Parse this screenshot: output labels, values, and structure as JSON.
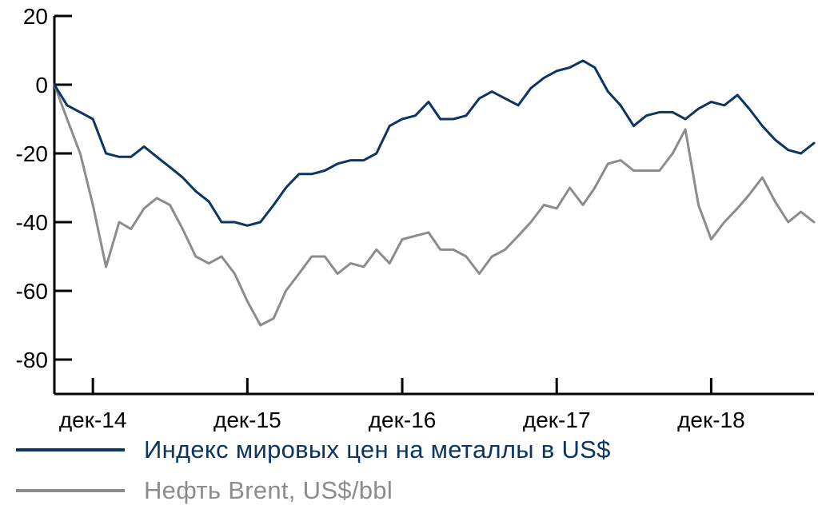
{
  "chart_data": {
    "type": "line",
    "title": "",
    "xlabel": "",
    "ylabel": "",
    "ylim": [
      -90,
      20
    ],
    "yticks": [
      20,
      0,
      -20,
      -40,
      -60,
      -80
    ],
    "xlim": [
      "2014-09-01",
      "2019-08-01"
    ],
    "xticks": [
      {
        "date": "2014-12-01",
        "label": "дек-14"
      },
      {
        "date": "2015-12-01",
        "label": "дек-15"
      },
      {
        "date": "2016-12-01",
        "label": "дек-16"
      },
      {
        "date": "2017-12-01",
        "label": "дек-17"
      },
      {
        "date": "2018-12-01",
        "label": "дек-18"
      }
    ],
    "grid": false,
    "legend_position": "bottom",
    "series": [
      {
        "name": "Индекс мировых цен на металлы в US$",
        "color": "#0b3563",
        "points": [
          [
            "2014-09-01",
            0
          ],
          [
            "2014-10-01",
            -6
          ],
          [
            "2014-11-01",
            -8
          ],
          [
            "2014-12-01",
            -10
          ],
          [
            "2015-01-01",
            -20
          ],
          [
            "2015-02-01",
            -21
          ],
          [
            "2015-03-01",
            -21
          ],
          [
            "2015-04-01",
            -18
          ],
          [
            "2015-05-01",
            -21
          ],
          [
            "2015-06-01",
            -24
          ],
          [
            "2015-07-01",
            -27
          ],
          [
            "2015-08-01",
            -31
          ],
          [
            "2015-09-01",
            -34
          ],
          [
            "2015-10-01",
            -40
          ],
          [
            "2015-11-01",
            -40
          ],
          [
            "2015-12-01",
            -41
          ],
          [
            "2016-01-01",
            -40
          ],
          [
            "2016-02-01",
            -35
          ],
          [
            "2016-03-01",
            -30
          ],
          [
            "2016-04-01",
            -26
          ],
          [
            "2016-05-01",
            -26
          ],
          [
            "2016-06-01",
            -25
          ],
          [
            "2016-07-01",
            -23
          ],
          [
            "2016-08-01",
            -22
          ],
          [
            "2016-09-01",
            -22
          ],
          [
            "2016-10-01",
            -20
          ],
          [
            "2016-11-01",
            -12
          ],
          [
            "2016-12-01",
            -10
          ],
          [
            "2017-01-01",
            -9
          ],
          [
            "2017-02-01",
            -5
          ],
          [
            "2017-03-01",
            -10
          ],
          [
            "2017-04-01",
            -10
          ],
          [
            "2017-05-01",
            -9
          ],
          [
            "2017-06-01",
            -4
          ],
          [
            "2017-07-01",
            -2
          ],
          [
            "2017-08-01",
            -4
          ],
          [
            "2017-09-01",
            -6
          ],
          [
            "2017-10-01",
            -1
          ],
          [
            "2017-11-01",
            2
          ],
          [
            "2017-12-01",
            4
          ],
          [
            "2018-01-01",
            5
          ],
          [
            "2018-02-01",
            7
          ],
          [
            "2018-03-01",
            5
          ],
          [
            "2018-04-01",
            -2
          ],
          [
            "2018-05-01",
            -6
          ],
          [
            "2018-06-01",
            -12
          ],
          [
            "2018-07-01",
            -9
          ],
          [
            "2018-08-01",
            -8
          ],
          [
            "2018-09-01",
            -8
          ],
          [
            "2018-10-01",
            -10
          ],
          [
            "2018-11-01",
            -7
          ],
          [
            "2018-12-01",
            -5
          ],
          [
            "2019-01-01",
            -6
          ],
          [
            "2019-02-01",
            -3
          ],
          [
            "2019-03-01",
            -7
          ],
          [
            "2019-04-01",
            -12
          ],
          [
            "2019-05-01",
            -16
          ],
          [
            "2019-06-01",
            -19
          ],
          [
            "2019-07-01",
            -20
          ],
          [
            "2019-08-01",
            -17
          ]
        ]
      },
      {
        "name": "Нефть Brent, US$/bbl",
        "color": "#8c8c8c",
        "points": [
          [
            "2014-09-01",
            0
          ],
          [
            "2014-10-01",
            -10
          ],
          [
            "2014-11-01",
            -20
          ],
          [
            "2014-12-01",
            -35
          ],
          [
            "2015-01-01",
            -53
          ],
          [
            "2015-02-01",
            -40
          ],
          [
            "2015-03-01",
            -42
          ],
          [
            "2015-04-01",
            -36
          ],
          [
            "2015-05-01",
            -33
          ],
          [
            "2015-06-01",
            -35
          ],
          [
            "2015-07-01",
            -42
          ],
          [
            "2015-08-01",
            -50
          ],
          [
            "2015-09-01",
            -52
          ],
          [
            "2015-10-01",
            -50
          ],
          [
            "2015-11-01",
            -55
          ],
          [
            "2015-12-01",
            -63
          ],
          [
            "2016-01-01",
            -70
          ],
          [
            "2016-02-01",
            -68
          ],
          [
            "2016-03-01",
            -60
          ],
          [
            "2016-04-01",
            -55
          ],
          [
            "2016-05-01",
            -50
          ],
          [
            "2016-06-01",
            -50
          ],
          [
            "2016-07-01",
            -55
          ],
          [
            "2016-08-01",
            -52
          ],
          [
            "2016-09-01",
            -53
          ],
          [
            "2016-10-01",
            -48
          ],
          [
            "2016-11-01",
            -52
          ],
          [
            "2016-12-01",
            -45
          ],
          [
            "2017-01-01",
            -44
          ],
          [
            "2017-02-01",
            -43
          ],
          [
            "2017-03-01",
            -48
          ],
          [
            "2017-04-01",
            -48
          ],
          [
            "2017-05-01",
            -50
          ],
          [
            "2017-06-01",
            -55
          ],
          [
            "2017-07-01",
            -50
          ],
          [
            "2017-08-01",
            -48
          ],
          [
            "2017-09-01",
            -44
          ],
          [
            "2017-10-01",
            -40
          ],
          [
            "2017-11-01",
            -35
          ],
          [
            "2017-12-01",
            -36
          ],
          [
            "2018-01-01",
            -30
          ],
          [
            "2018-02-01",
            -35
          ],
          [
            "2018-03-01",
            -30
          ],
          [
            "2018-04-01",
            -23
          ],
          [
            "2018-05-01",
            -22
          ],
          [
            "2018-06-01",
            -25
          ],
          [
            "2018-07-01",
            -25
          ],
          [
            "2018-08-01",
            -25
          ],
          [
            "2018-09-01",
            -20
          ],
          [
            "2018-10-01",
            -13
          ],
          [
            "2018-11-01",
            -35
          ],
          [
            "2018-12-01",
            -45
          ],
          [
            "2019-01-01",
            -40
          ],
          [
            "2019-02-01",
            -36
          ],
          [
            "2019-03-01",
            -32
          ],
          [
            "2019-04-01",
            -27
          ],
          [
            "2019-05-01",
            -34
          ],
          [
            "2019-06-01",
            -40
          ],
          [
            "2019-07-01",
            -37
          ],
          [
            "2019-08-01",
            -40
          ]
        ]
      }
    ]
  }
}
